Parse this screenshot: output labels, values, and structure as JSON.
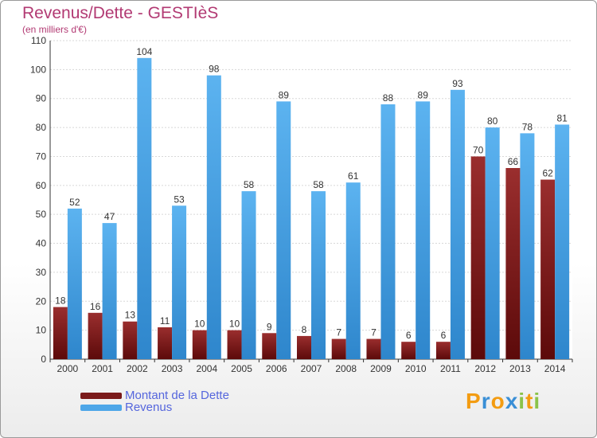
{
  "header": {
    "title": "Revenus/Dette - GESTIèS",
    "subtitle": "(en milliers d'€)"
  },
  "chart_data": {
    "type": "bar",
    "categories": [
      "2000",
      "2001",
      "2002",
      "2003",
      "2004",
      "2005",
      "2006",
      "2007",
      "2008",
      "2009",
      "2010",
      "2011",
      "2012",
      "2013",
      "2014"
    ],
    "series": [
      {
        "name": "Montant de la Dette",
        "values": [
          18,
          16,
          13,
          11,
          10,
          10,
          9,
          8,
          7,
          7,
          6,
          6,
          70,
          66,
          62
        ],
        "color": "#7a1a1a"
      },
      {
        "name": "Revenus",
        "values": [
          52,
          47,
          104,
          53,
          98,
          58,
          89,
          58,
          61,
          88,
          89,
          93,
          80,
          78,
          81
        ],
        "color": "#4da6e8"
      }
    ],
    "ylim": [
      0,
      110
    ],
    "yticks": [
      0,
      10,
      20,
      30,
      40,
      50,
      60,
      70,
      80,
      90,
      100,
      110
    ],
    "grid": true,
    "legend_position": "bottom-left"
  },
  "legend": {
    "items": [
      {
        "label": "Montant de la Dette",
        "color": "#7a1a1a"
      },
      {
        "label": "Revenus",
        "color": "#4da6e8"
      }
    ]
  },
  "logo": {
    "letters": [
      "P",
      "r",
      "o",
      "x",
      "i",
      "t",
      "i"
    ],
    "colors": [
      "#f39c12",
      "#3a8fd6",
      "#f39c12",
      "#3a8fd6",
      "#8bc34a",
      "#f39c12",
      "#8bc34a"
    ]
  }
}
